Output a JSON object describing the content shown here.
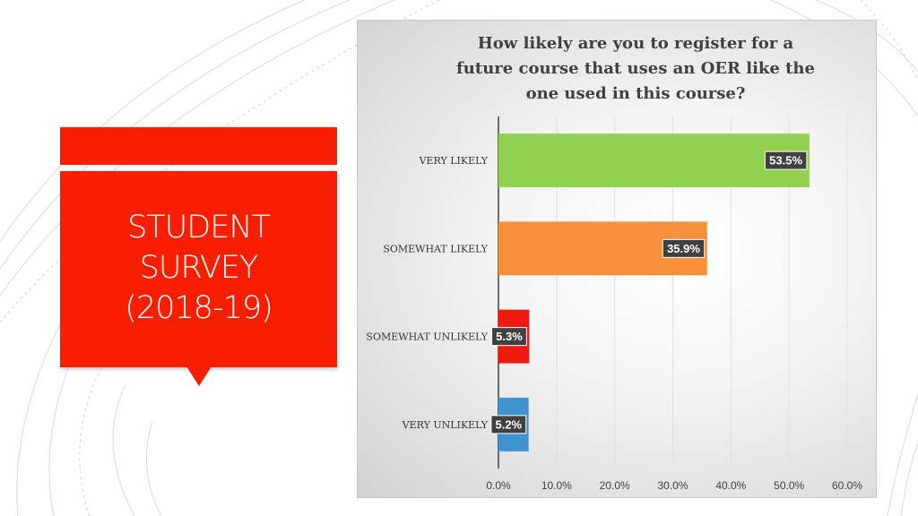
{
  "slide": {
    "title_lines": [
      "STUDENT",
      "SURVEY",
      "(2018-19)"
    ],
    "accent_color": "#f91e00"
  },
  "chart_data": {
    "type": "bar",
    "orientation": "horizontal",
    "title": "How likely are you to register for a future course that uses an OER like the one used in this course?",
    "title_lines": [
      "How likely are you to register for a",
      "future course that uses an OER like the",
      "one used in this course?"
    ],
    "categories": [
      "VERY LIKELY",
      "SOMEWHAT LIKELY",
      "SOMEWHAT UNLIKELY",
      "VERY UNLIKELY"
    ],
    "values": [
      53.5,
      35.9,
      5.3,
      5.2
    ],
    "value_labels": [
      "53.5%",
      "35.9%",
      "5.3%",
      "5.2%"
    ],
    "colors": [
      "#92d050",
      "#f8903b",
      "#f0190f",
      "#3f93cf"
    ],
    "xlim": [
      0,
      60
    ],
    "xticks": [
      0,
      10,
      20,
      30,
      40,
      50,
      60
    ],
    "xtick_labels": [
      "0.0%",
      "10.0%",
      "20.0%",
      "30.0%",
      "40.0%",
      "50.0%",
      "60.0%"
    ],
    "xlabel": "",
    "ylabel": "",
    "grid": true,
    "legend": "none"
  }
}
